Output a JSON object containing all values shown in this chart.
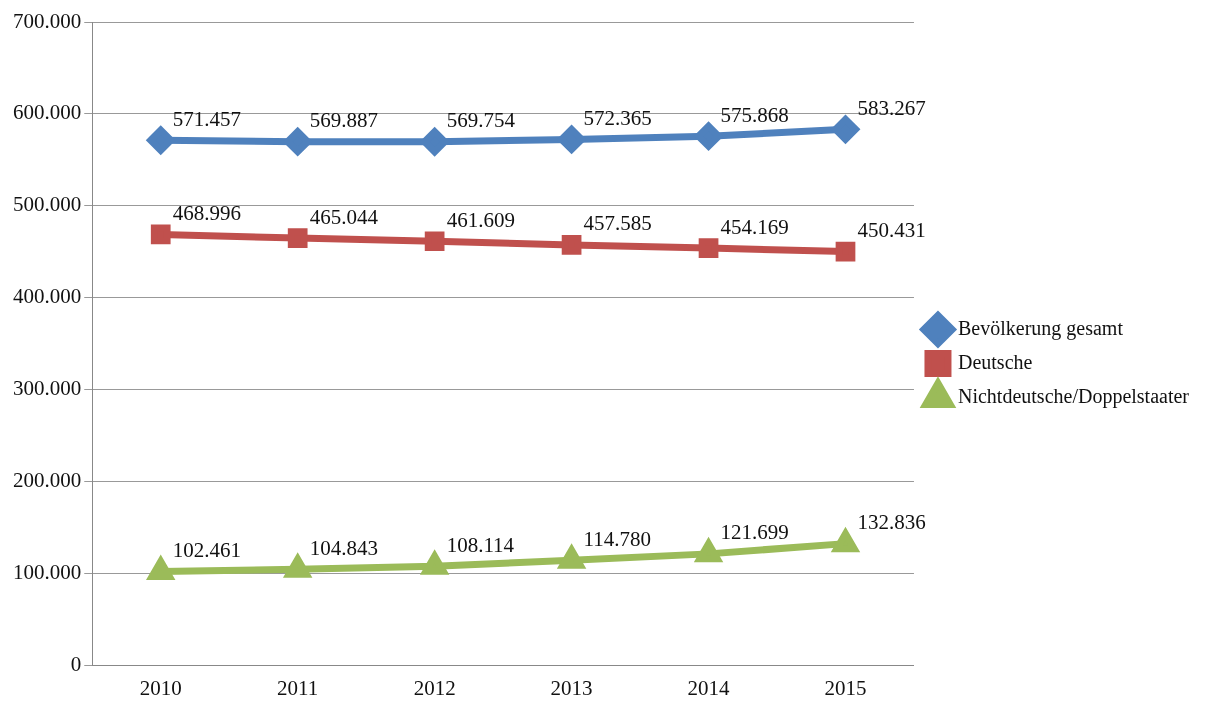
{
  "chart_data": {
    "type": "line",
    "categories": [
      "2010",
      "2011",
      "2012",
      "2013",
      "2014",
      "2015"
    ],
    "series": [
      {
        "name": "Bevölkerung gesamt",
        "color": "#4f81bd",
        "marker": "diamond",
        "values": [
          571457,
          569887,
          569754,
          572365,
          575868,
          583267
        ],
        "value_labels": [
          "571.457",
          "569.887",
          "569.754",
          "572.365",
          "575.868",
          "583.267"
        ]
      },
      {
        "name": "Deutsche",
        "color": "#c0504d",
        "marker": "square",
        "values": [
          468996,
          465044,
          461609,
          457585,
          454169,
          450431
        ],
        "value_labels": [
          "468.996",
          "465.044",
          "461.609",
          "457.585",
          "454.169",
          "450.431"
        ]
      },
      {
        "name": "Nichtdeutsche/Doppelstaater",
        "color": "#9bbb59",
        "marker": "triangle",
        "values": [
          102461,
          104843,
          108114,
          114780,
          121699,
          132836
        ],
        "value_labels": [
          "102.461",
          "104.843",
          "108.114",
          "114.780",
          "121.699",
          "132.836"
        ]
      }
    ],
    "ylim": [
      0,
      700000
    ],
    "yticks": [
      {
        "value": 0,
        "label": "0"
      },
      {
        "value": 100000,
        "label": "100.000"
      },
      {
        "value": 200000,
        "label": "200.000"
      },
      {
        "value": 300000,
        "label": "300.000"
      },
      {
        "value": 400000,
        "label": "400.000"
      },
      {
        "value": 500000,
        "label": "500.000"
      },
      {
        "value": 600000,
        "label": "600.000"
      },
      {
        "value": 700000,
        "label": "700.000"
      }
    ],
    "grid": "y",
    "legend": "right",
    "line_style": "solid"
  }
}
